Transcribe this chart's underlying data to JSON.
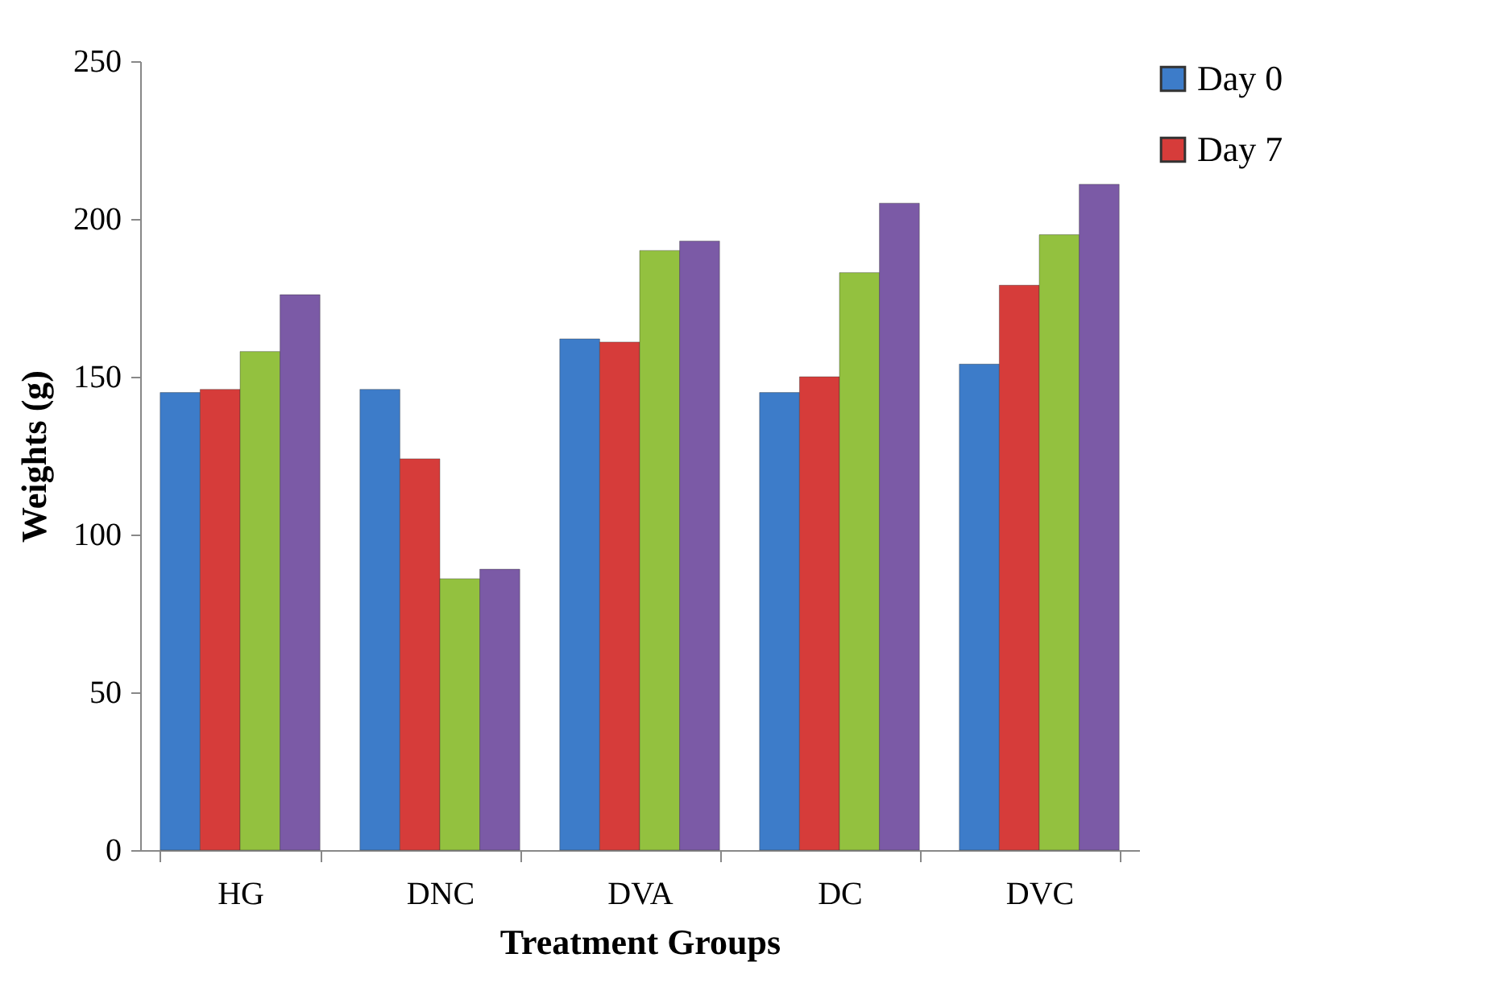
{
  "chart_data": {
    "type": "bar",
    "xlabel": "Treatment Groups",
    "ylabel": "Weights (g)",
    "categories": [
      "HG",
      "DNC",
      "DVA",
      "DC",
      "DVC"
    ],
    "series": [
      {
        "name": "Day 0",
        "color": "#3d7cc9",
        "values": [
          145,
          146,
          162,
          145,
          154
        ]
      },
      {
        "name": "Day 7",
        "color": "#d63c3a",
        "values": [
          146,
          124,
          161,
          150,
          179
        ]
      },
      {
        "color": "#93c13f",
        "values": [
          158,
          86,
          190,
          183,
          195
        ]
      },
      {
        "color": "#7b5aa6",
        "values": [
          176,
          89,
          193,
          205,
          211
        ]
      }
    ],
    "ylim": [
      0,
      250
    ],
    "yticks": [
      0,
      50,
      100,
      150,
      200,
      250
    ],
    "grid": false,
    "legend": "right"
  }
}
